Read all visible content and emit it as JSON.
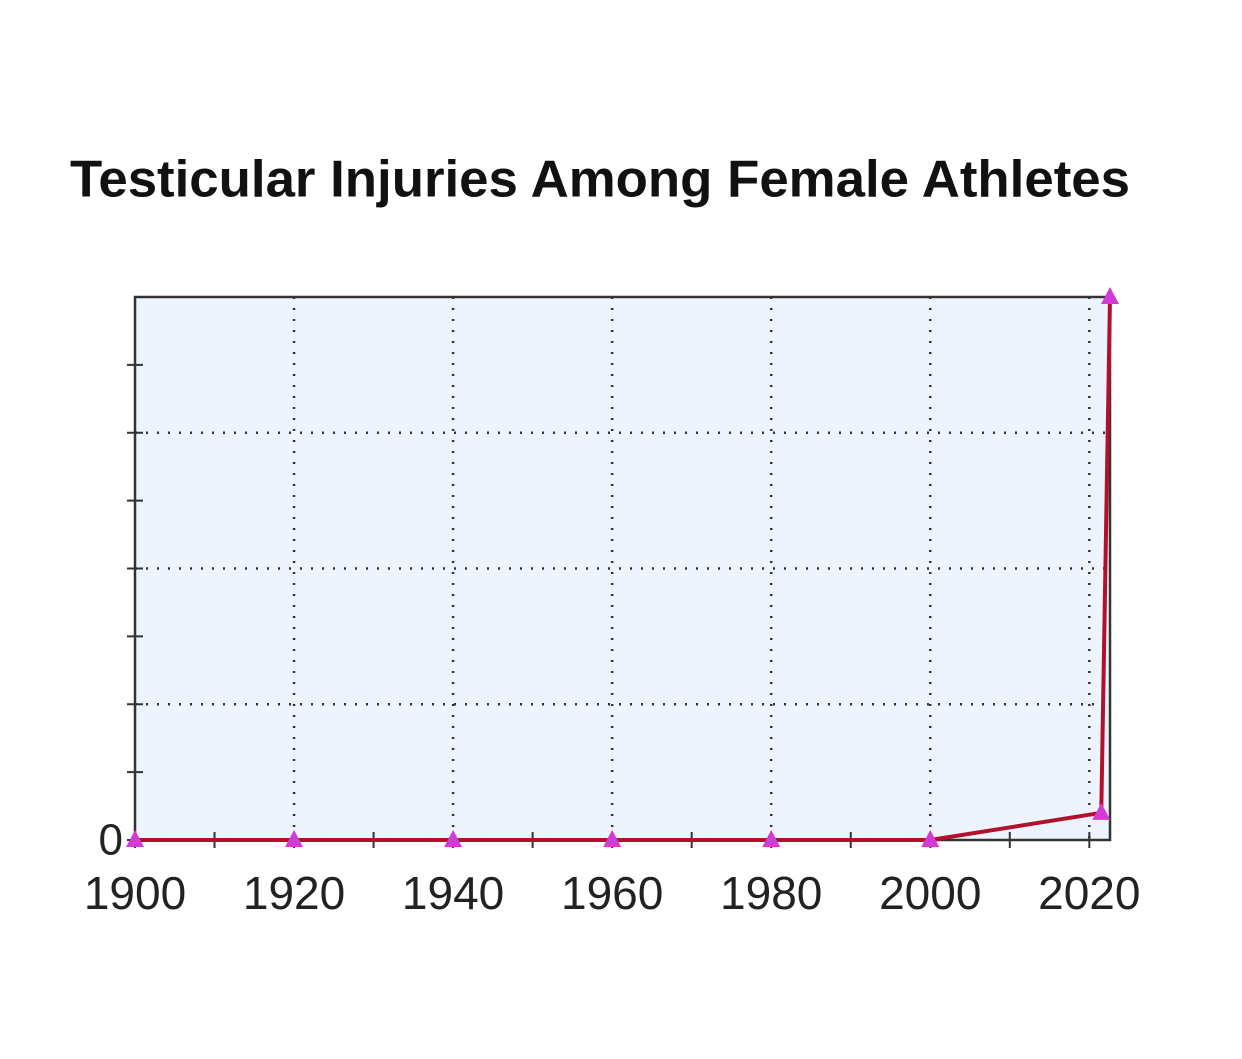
{
  "chart_data": {
    "type": "line",
    "title": "Testicular Injuries Among Female Athletes",
    "x": [
      1900,
      1920,
      1940,
      1960,
      1980,
      2000,
      2021.5,
      2022.6
    ],
    "series": [
      {
        "color": "#b3102c",
        "marker_color": "#d43ad4",
        "values": [
          0,
          0,
          0,
          0,
          0,
          0,
          0.2,
          4
        ]
      }
    ],
    "xlim": [
      1900,
      2022.6
    ],
    "xticks": [
      1900,
      1920,
      1940,
      1960,
      1980,
      2000,
      2020
    ],
    "ylim": [
      0,
      4
    ],
    "yticks": [
      0
    ],
    "grid": true,
    "plot_background": "#eef4fd"
  }
}
